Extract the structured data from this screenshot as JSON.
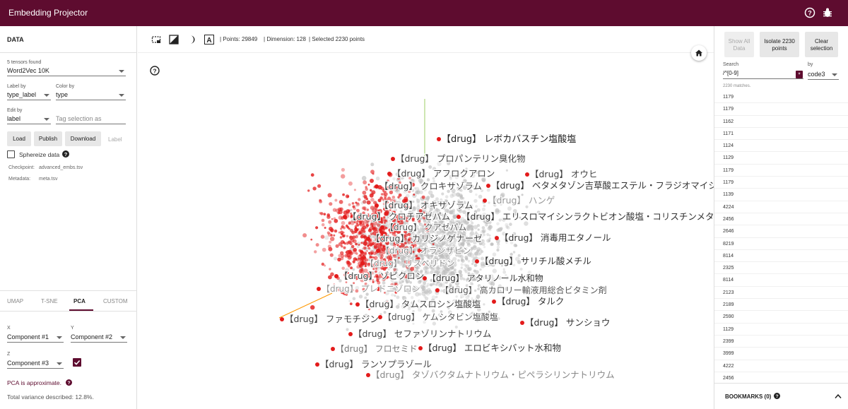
{
  "app": {
    "title": "Embedding Projector"
  },
  "left": {
    "section_title": "DATA",
    "tensors_found": "5 tensors found",
    "tensor": "Word2Vec 10K",
    "label_by_caption": "Label by",
    "label_by": "type_label",
    "color_by_caption": "Color by",
    "color_by": "type",
    "edit_by_caption": "Edit by",
    "edit_by": "label",
    "tag_placeholder": "Tag selection as",
    "load": "Load",
    "publish": "Publish",
    "download": "Download",
    "label": "Label",
    "sphereize": "Sphereize data",
    "checkpoint_label": "Checkpoint:",
    "checkpoint": "advanced_embs.tsv",
    "metadata_label": "Metadata:",
    "metadata": "meta.tsv",
    "tabs": [
      "UMAP",
      "T-SNE",
      "PCA",
      "CUSTOM"
    ],
    "x_caption": "X",
    "x": "Component #1",
    "y_caption": "Y",
    "y": "Component #2",
    "z_caption": "Z",
    "z": "Component #3",
    "pca_note": "PCA is approximate.",
    "variance": "Total variance described: 12.8%."
  },
  "toolbar": {
    "points": "Points: 29849",
    "dimension": "Dimension: 128",
    "selected": "Selected 2230 points"
  },
  "labels": [
    {
      "text": "【drug】 レボカバスチン塩酸塩",
      "color": "#222"
    },
    {
      "text": "【drug】 プロパンテリン臭化物",
      "color": "#444"
    },
    {
      "text": "【drug】 アフロクアロン",
      "color": "#444"
    },
    {
      "text": "【drug】 オウヒ",
      "color": "#444"
    },
    {
      "text": "【drug】 クロキサゾラム",
      "color": "#444"
    },
    {
      "text": "【drug】 ベタメタゾン吉草酸エステル・フラジオマイシ",
      "color": "#333"
    },
    {
      "text": "【drug】 ハンゲ",
      "color": "#999"
    },
    {
      "text": "【drug】 オキサゾラム",
      "color": "#444"
    },
    {
      "text": "【drug】 クロチアゼパム",
      "color": "#444"
    },
    {
      "text": "【drug】 エリスロマイシンラクトビオン酸塩・コリスチンメタン",
      "color": "#333"
    },
    {
      "text": "【drug】 クアゼパム",
      "color": "#555"
    },
    {
      "text": "【drug】 カリジノゲナーゼ",
      "color": "#444"
    },
    {
      "text": "【drug】 消毒用エタノール",
      "color": "#333"
    },
    {
      "text": "【drug】 オランザピン",
      "color": "#888"
    },
    {
      "text": "【drug】 サリチル酸メチル",
      "color": "#333"
    },
    {
      "text": "【drug】 リスペリドン",
      "color": "#888"
    },
    {
      "text": "【drug】 ゾピクロン",
      "color": "#444"
    },
    {
      "text": "【drug】 アタリノール水和物",
      "color": "#333"
    },
    {
      "text": "【drug】 プレドニゾロン",
      "color": "#999"
    },
    {
      "text": "【drug】 高カロリー輸液用総合ビタミン剤",
      "color": "#555"
    },
    {
      "text": "【drug】 タルク",
      "color": "#333"
    },
    {
      "text": "【drug】 タムスロシン塩酸塩",
      "color": "#444"
    },
    {
      "text": "【drug】 ファモチジン",
      "color": "#444"
    },
    {
      "text": "【drug】 ケムシタビン塩酸塩",
      "color": "#555"
    },
    {
      "text": "【drug】 サンショウ",
      "color": "#333"
    },
    {
      "text": "【drug】 セファゾリンナトリウム",
      "color": "#444"
    },
    {
      "text": "【drug】 フロセミド",
      "color": "#777"
    },
    {
      "text": "【drug】 エロビキシバット水和物",
      "color": "#333"
    },
    {
      "text": "【drug】 ランソプラゾール",
      "color": "#444"
    },
    {
      "text": "【drug】 タゾバクタムナトリウム・ピペラシリンナトリウム",
      "color": "#888"
    }
  ],
  "right": {
    "show_all": "Show All Data",
    "isolate": "Isolate 2230 points",
    "clear": "Clear selection",
    "search_caption": "Search",
    "search_value": "/^[0-9]",
    "by_caption": "by",
    "by": "code3",
    "matches": "2230 matches.",
    "results": [
      "1179",
      "1179",
      "1162",
      "1171",
      "1124",
      "1129",
      "1179",
      "1179",
      "1139",
      "4224",
      "2456",
      "2646",
      "8219",
      "8114",
      "2325",
      "8114",
      "2123",
      "2189",
      "2590",
      "1129",
      "2399",
      "3999",
      "4222",
      "2456"
    ],
    "bookmarks": "BOOKMARKS (0)"
  },
  "colors": {
    "brand": "#5e0c2f",
    "selected_point": "#e31b1b",
    "point": "#bdbdbd"
  }
}
